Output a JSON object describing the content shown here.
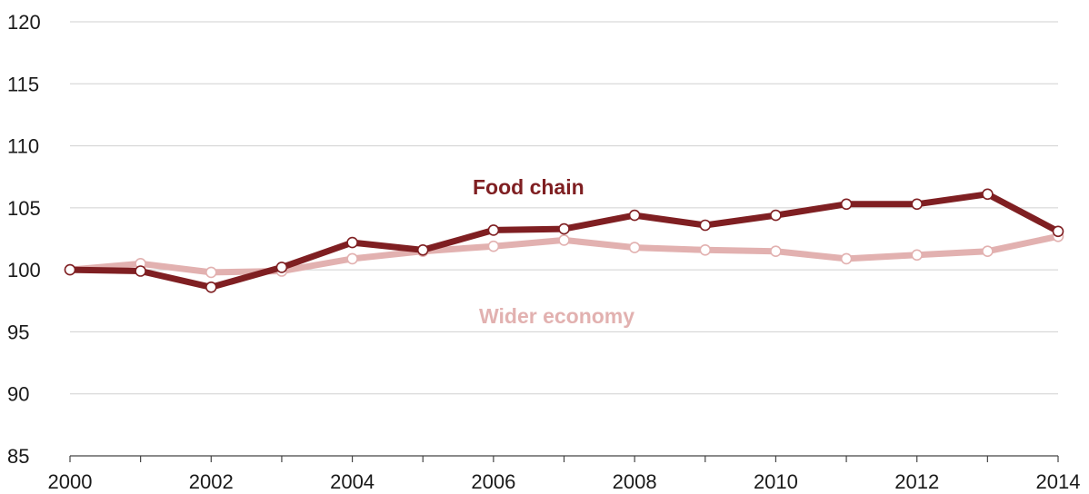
{
  "chart_data": {
    "type": "line",
    "title": "",
    "xlabel": "",
    "ylabel": "",
    "x": [
      2000,
      2001,
      2002,
      2003,
      2004,
      2005,
      2006,
      2007,
      2008,
      2009,
      2010,
      2011,
      2012,
      2013,
      2014
    ],
    "xticks": [
      "2000",
      "2002",
      "2004",
      "2006",
      "2008",
      "2010",
      "2012",
      "2014"
    ],
    "yticks": [
      "85",
      "90",
      "95",
      "100",
      "105",
      "110",
      "115",
      "120"
    ],
    "xlim": [
      2000,
      2014
    ],
    "ylim": [
      85,
      120
    ],
    "grid": "horizontal",
    "series": [
      {
        "name": "Wider economy",
        "color": "#e2b1b0",
        "values": [
          100.0,
          100.5,
          99.8,
          99.9,
          100.9,
          101.5,
          101.9,
          102.4,
          101.8,
          101.6,
          101.5,
          100.9,
          101.2,
          101.5,
          102.7
        ]
      },
      {
        "name": "Food chain",
        "color": "#7f1f22",
        "values": [
          100.0,
          99.9,
          98.6,
          100.2,
          102.2,
          101.6,
          103.2,
          103.3,
          104.4,
          103.6,
          104.4,
          105.3,
          105.3,
          106.1,
          103.1
        ]
      }
    ],
    "annotations": [
      "Food chain",
      "Wider economy"
    ]
  }
}
